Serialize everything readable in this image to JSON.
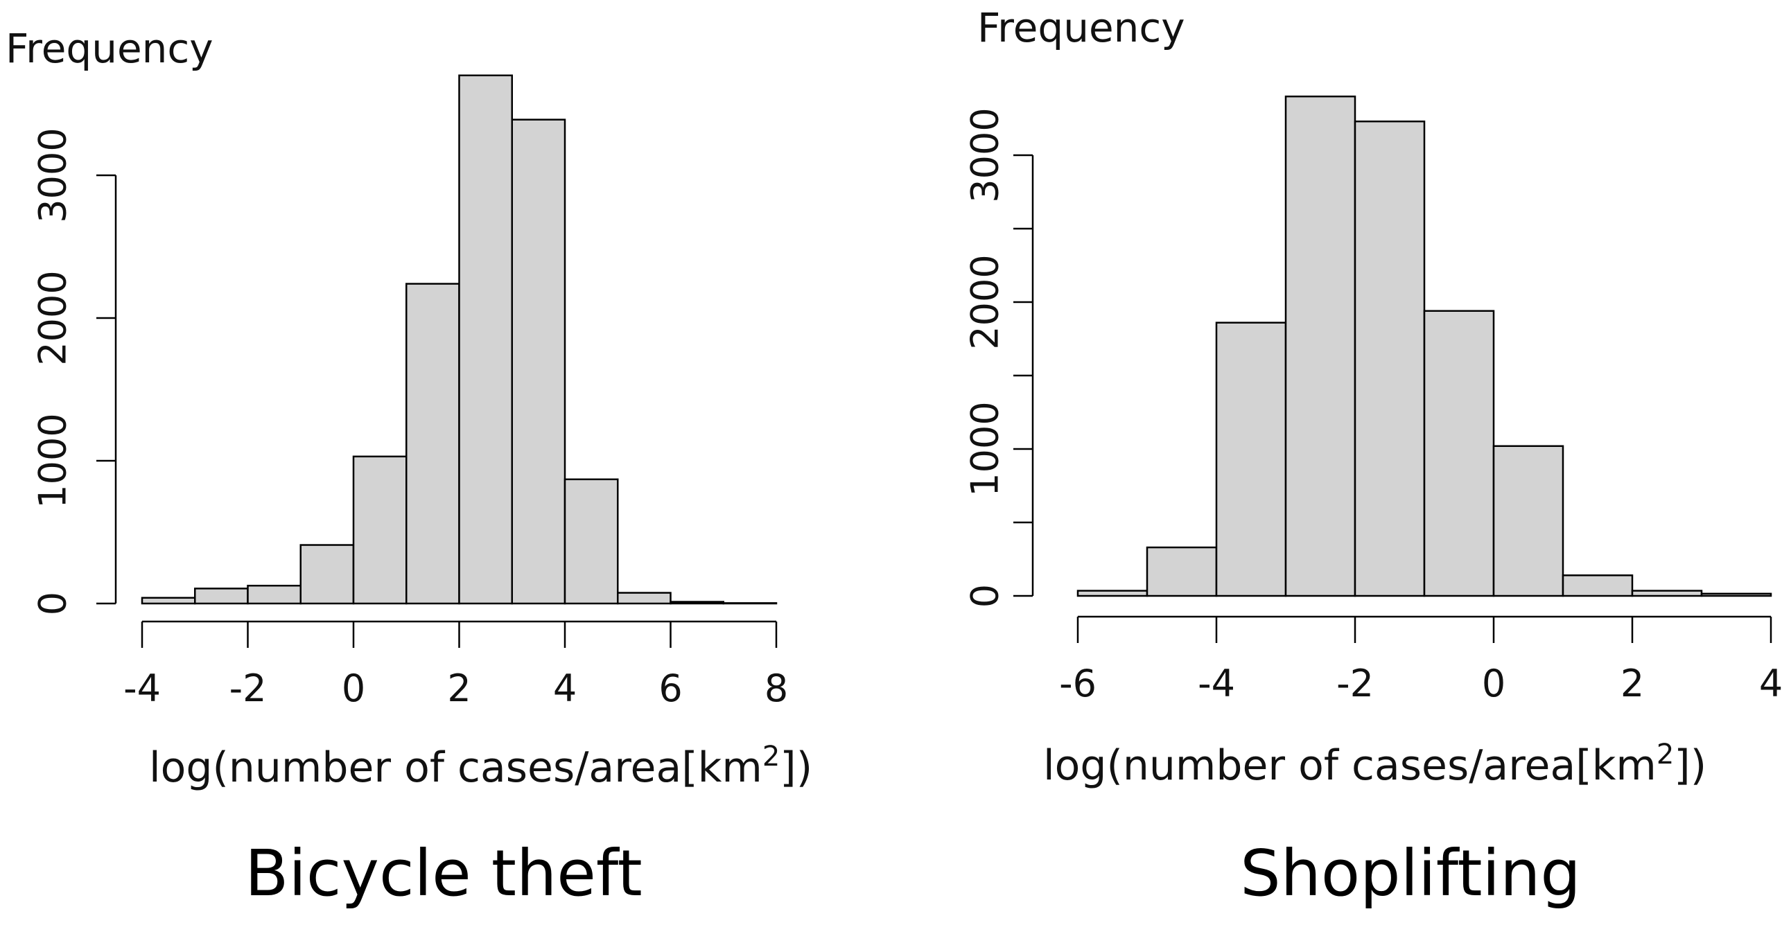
{
  "chart_data": [
    {
      "type": "bar",
      "title": "Bicycle theft",
      "xlabel": "log(number of cases/area[km",
      "xlabel_sup": "2",
      "xlabel_close": "])",
      "ylabel": "Frequency",
      "bin_edges": [
        -4,
        -3,
        -2,
        -1,
        0,
        1,
        2,
        3,
        4,
        5,
        6,
        7,
        8
      ],
      "values": [
        40,
        105,
        125,
        410,
        1030,
        2240,
        3700,
        3390,
        870,
        75,
        12,
        3
      ],
      "xlim": [
        -4,
        8
      ],
      "ylim": [
        0,
        3000
      ],
      "x_ticks": [
        -4,
        -2,
        0,
        2,
        4,
        6,
        8
      ],
      "y_ticks": [
        0,
        1000,
        2000,
        3000
      ],
      "x_tick_labels": [
        "-4",
        "-2",
        "0",
        "2",
        "4",
        "6",
        "8"
      ],
      "y_tick_labels": [
        "0",
        "1000",
        "2000",
        "3000"
      ],
      "grid": false,
      "bar_color": "#d3d3d3",
      "edge_color": "#000000"
    },
    {
      "type": "bar",
      "title": "Shoplifting",
      "xlabel": "log(number of cases/area[km",
      "xlabel_sup": "2",
      "xlabel_close": "])",
      "ylabel": "Frequency",
      "bin_edges": [
        -6,
        -5,
        -4,
        -3,
        -2,
        -1,
        0,
        1,
        2,
        3,
        4
      ],
      "values": [
        35,
        330,
        1860,
        3400,
        3230,
        1940,
        1020,
        140,
        35,
        15
      ],
      "xlim": [
        -6,
        4
      ],
      "ylim": [
        0,
        3000
      ],
      "x_ticks": [
        -6,
        -4,
        -2,
        0,
        2,
        4
      ],
      "y_ticks": [
        0,
        500,
        1000,
        1500,
        2000,
        2500,
        3000
      ],
      "x_tick_labels": [
        "-6",
        "-4",
        "-2",
        "0",
        "2",
        "4"
      ],
      "y_tick_labels": [
        "0",
        "",
        "1000",
        "",
        "2000",
        "",
        "3000"
      ],
      "grid": false,
      "bar_color": "#d3d3d3",
      "edge_color": "#000000"
    }
  ]
}
